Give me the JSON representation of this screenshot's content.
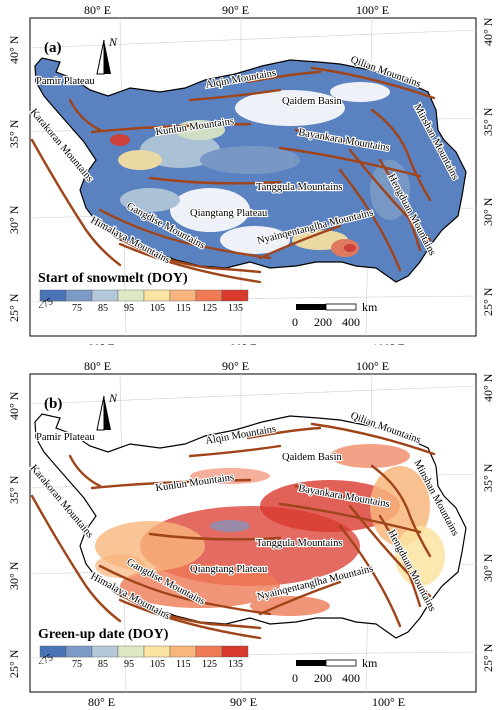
{
  "panels": [
    {
      "label": "(a)",
      "legend_title": "Start of snowmelt (DOY)",
      "palette": "snowmelt"
    },
    {
      "label": "(b)",
      "legend_title": "Green-up date (DOY)",
      "palette": "greenup"
    }
  ],
  "axes": {
    "top_ticks": [
      "80° E",
      "90° E",
      "100° E"
    ],
    "bottom_ticks": [
      "80° E",
      "90° E",
      "100° E"
    ],
    "left_ticks": [
      "40° N",
      "35° N",
      "30° N",
      "25° N"
    ],
    "right_ticks": [
      "40° N",
      "35° N",
      "30° N",
      "25° N"
    ]
  },
  "north_arrow": "N",
  "legend": {
    "labels": [
      "<75",
      "75",
      "85",
      "95",
      "105",
      "115",
      "125",
      "135"
    ],
    "colors": [
      "#4a74b8",
      "#7b9ac6",
      "#b4c8d9",
      "#dde9c5",
      "#fbe3a1",
      "#f8b57c",
      "#ee7a56",
      "#d93a2e"
    ]
  },
  "scale_bar": {
    "unit": "km",
    "ticks": [
      "0",
      "200",
      "400"
    ]
  },
  "place_labels": {
    "pamir": "Pamir Plateau",
    "altun": "Alqin Mountains",
    "qilian": "Qilian Mountains",
    "qaidam": "Qaidem Basin",
    "kunlun": "Kunlun Mountains",
    "karakoram": "Karakoran Mountains",
    "bayankara": "Bayankara Mountains",
    "minshan": "Minshan Mountains",
    "tanggula": "Tanggula Mountains",
    "hengduan": "Hengduan Mountains",
    "qiangtang": "Qiangtang Plateau",
    "gangdise": "Gangdise Mountains",
    "himalaya": "Himalaya Mountains",
    "nyainqen": "Nyainqentanglha Mountains"
  },
  "colors": {
    "mountain_line": "#a0441a",
    "snow_blue": "#4a74b8",
    "greenup_red": "#d93a2e"
  }
}
